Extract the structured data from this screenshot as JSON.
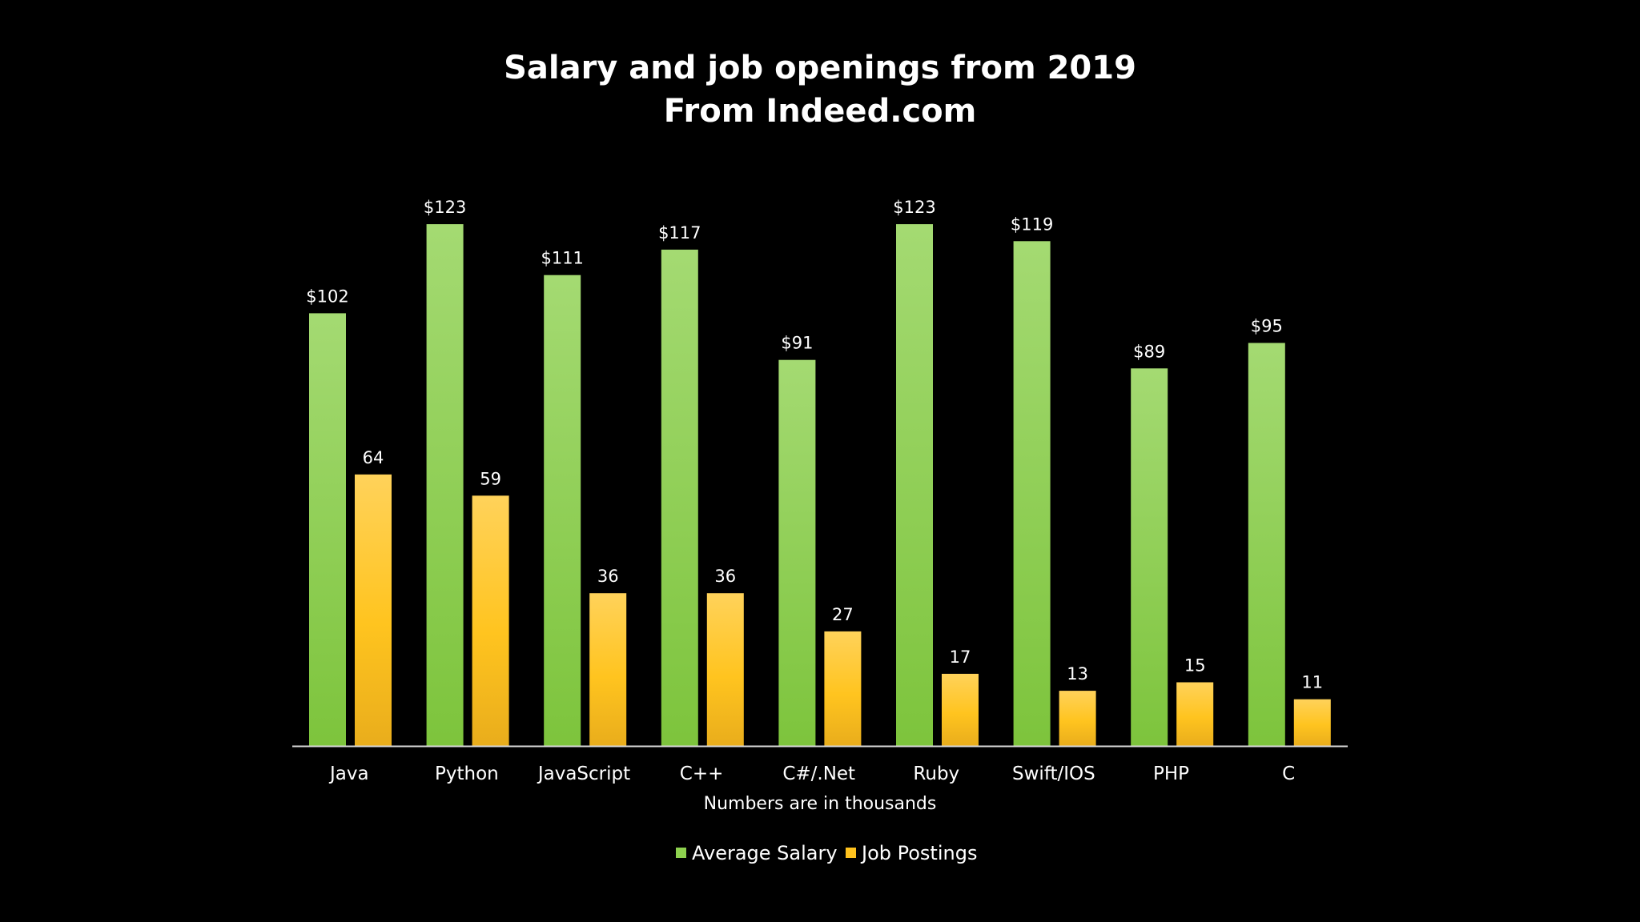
{
  "chart_data": {
    "type": "bar",
    "title": "Salary and job openings from 2019",
    "subtitle": "From Indeed.com",
    "xlabel": "Numbers are in thousands",
    "ylabel": "",
    "ylim": [
      0,
      130
    ],
    "grid": false,
    "legend_position": "bottom",
    "categories": [
      "Java",
      "Python",
      "JavaScript",
      "C++",
      "C#/.Net",
      "Ruby",
      "Swift/IOS",
      "PHP",
      "C"
    ],
    "series": [
      {
        "name": "Average Salary",
        "values": [
          102,
          123,
          111,
          117,
          91,
          123,
          119,
          89,
          95
        ],
        "labels": [
          "$102",
          "$123",
          "$111",
          "$117",
          "$91",
          "$123",
          "$119",
          "$89",
          "$95"
        ],
        "color": "#8ed14f"
      },
      {
        "name": "Job Postings",
        "values": [
          64,
          59,
          36,
          36,
          27,
          17,
          13,
          15,
          11
        ],
        "labels": [
          "64",
          "59",
          "36",
          "36",
          "27",
          "17",
          "13",
          "15",
          "11"
        ],
        "color": "#ffc21e"
      }
    ]
  }
}
